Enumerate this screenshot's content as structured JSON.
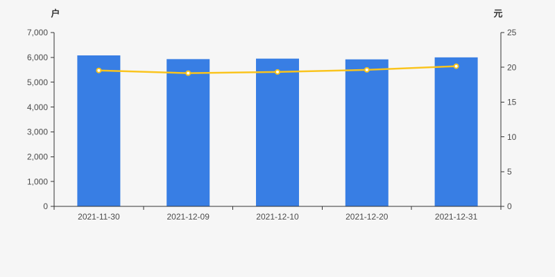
{
  "chart_data": {
    "type": "bar+line",
    "title": "",
    "categories": [
      "2021-11-30",
      "2021-12-09",
      "2021-12-10",
      "2021-12-20",
      "2021-12-31"
    ],
    "series": [
      {
        "type": "bar",
        "axis": "left",
        "unit": "户",
        "values": [
          6080,
          5930,
          5950,
          5920,
          6000
        ]
      },
      {
        "type": "line",
        "axis": "right",
        "unit": "元",
        "values": [
          19.55,
          19.16,
          19.33,
          19.63,
          20.16
        ]
      }
    ],
    "left_axis": {
      "unit": "户",
      "min": 0,
      "max": 7000,
      "step": 1000,
      "tick_labels": [
        "0",
        "1,000",
        "2,000",
        "3,000",
        "4,000",
        "5,000",
        "6,000",
        "7,000"
      ]
    },
    "right_axis": {
      "unit": "元",
      "min": 0,
      "max": 25,
      "step": 5,
      "tick_labels": [
        "0",
        "5",
        "10",
        "15",
        "20",
        "25"
      ]
    },
    "grid": false,
    "legend": false,
    "colors": {
      "bar": "#387ee4",
      "line": "#fac41d",
      "point_fill": "#ffffff",
      "axis": "#333333",
      "tick_text": "#4a4a4a",
      "background": "#f6f6f6"
    }
  }
}
